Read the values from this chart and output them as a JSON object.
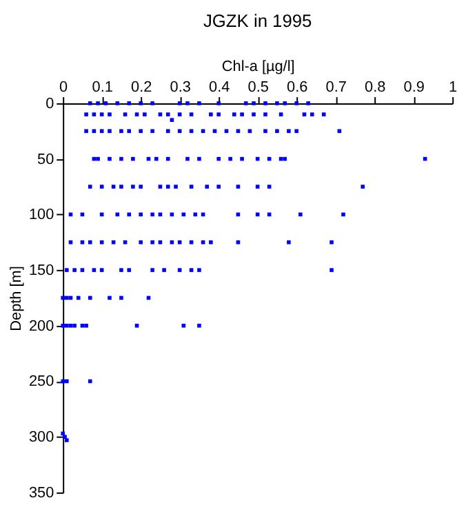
{
  "chart_data": {
    "type": "scatter",
    "title": "JGZK in 1995",
    "xlabel": "Chl-a [µg/l]",
    "ylabel": "Depth [m]",
    "xlim": [
      0,
      1
    ],
    "xticks": [
      0,
      0.1,
      0.2,
      0.3,
      0.4,
      0.5,
      0.6,
      0.7,
      0.8,
      0.9,
      1
    ],
    "ylim": [
      350,
      0
    ],
    "yticks": [
      0,
      50,
      100,
      150,
      200,
      250,
      300,
      350
    ],
    "marker": "square",
    "grid": false,
    "series": [
      {
        "color": "#0000ff",
        "x": [
          0.07,
          0.09,
          0.11,
          0.14,
          0.17,
          0.2,
          0.23,
          0.3,
          0.32,
          0.35,
          0.4,
          0.47,
          0.49,
          0.52,
          0.55,
          0.57,
          0.6,
          0.63,
          0.06,
          0.08,
          0.1,
          0.12,
          0.16,
          0.19,
          0.21,
          0.25,
          0.27,
          0.3,
          0.33,
          0.38,
          0.4,
          0.44,
          0.46,
          0.49,
          0.52,
          0.56,
          0.62,
          0.64,
          0.67,
          0.28,
          0.06,
          0.08,
          0.1,
          0.12,
          0.15,
          0.17,
          0.2,
          0.23,
          0.27,
          0.3,
          0.33,
          0.36,
          0.39,
          0.42,
          0.45,
          0.48,
          0.52,
          0.55,
          0.58,
          0.6,
          0.71,
          0.08,
          0.09,
          0.12,
          0.15,
          0.18,
          0.22,
          0.24,
          0.27,
          0.32,
          0.35,
          0.4,
          0.43,
          0.46,
          0.5,
          0.53,
          0.56,
          0.57,
          0.93,
          0.07,
          0.1,
          0.13,
          0.15,
          0.18,
          0.2,
          0.25,
          0.27,
          0.29,
          0.33,
          0.37,
          0.4,
          0.45,
          0.5,
          0.53,
          0.77,
          0.02,
          0.05,
          0.1,
          0.14,
          0.17,
          0.2,
          0.23,
          0.25,
          0.28,
          0.31,
          0.34,
          0.36,
          0.45,
          0.5,
          0.53,
          0.61,
          0.72,
          0.02,
          0.05,
          0.07,
          0.1,
          0.13,
          0.16,
          0.2,
          0.23,
          0.25,
          0.28,
          0.3,
          0.33,
          0.36,
          0.38,
          0.45,
          0.58,
          0.69,
          0.01,
          0.03,
          0.05,
          0.08,
          0.1,
          0.15,
          0.17,
          0.23,
          0.26,
          0.3,
          0.33,
          0.35,
          0.69,
          0.0,
          0.01,
          0.02,
          0.04,
          0.07,
          0.12,
          0.15,
          0.22,
          0.0,
          0.01,
          0.02,
          0.03,
          0.05,
          0.06,
          0.19,
          0.31,
          0.35,
          0.0,
          0.01,
          0.07,
          0.0,
          0.005,
          0.01
        ],
        "values": [
          0,
          0,
          0,
          0,
          0,
          0,
          0,
          0,
          0,
          0,
          0,
          0,
          0,
          0,
          0,
          0,
          0,
          0,
          10,
          10,
          10,
          10,
          10,
          10,
          10,
          10,
          10,
          10,
          10,
          10,
          10,
          10,
          10,
          10,
          10,
          10,
          10,
          10,
          10,
          15,
          25,
          25,
          25,
          25,
          25,
          25,
          25,
          25,
          25,
          25,
          25,
          25,
          25,
          25,
          25,
          25,
          25,
          25,
          25,
          25,
          25,
          50,
          50,
          50,
          50,
          50,
          50,
          50,
          50,
          50,
          50,
          50,
          50,
          50,
          50,
          50,
          50,
          50,
          50,
          75,
          75,
          75,
          75,
          75,
          75,
          75,
          75,
          75,
          75,
          75,
          75,
          75,
          75,
          75,
          75,
          100,
          100,
          100,
          100,
          100,
          100,
          100,
          100,
          100,
          100,
          100,
          100,
          100,
          100,
          100,
          100,
          100,
          125,
          125,
          125,
          125,
          125,
          125,
          125,
          125,
          125,
          125,
          125,
          125,
          125,
          125,
          125,
          125,
          125,
          150,
          150,
          150,
          150,
          150,
          150,
          150,
          150,
          150,
          150,
          150,
          150,
          150,
          175,
          175,
          175,
          175,
          175,
          175,
          175,
          175,
          200,
          200,
          200,
          200,
          200,
          200,
          200,
          200,
          200,
          250,
          250,
          250,
          297,
          300,
          303
        ]
      }
    ]
  }
}
